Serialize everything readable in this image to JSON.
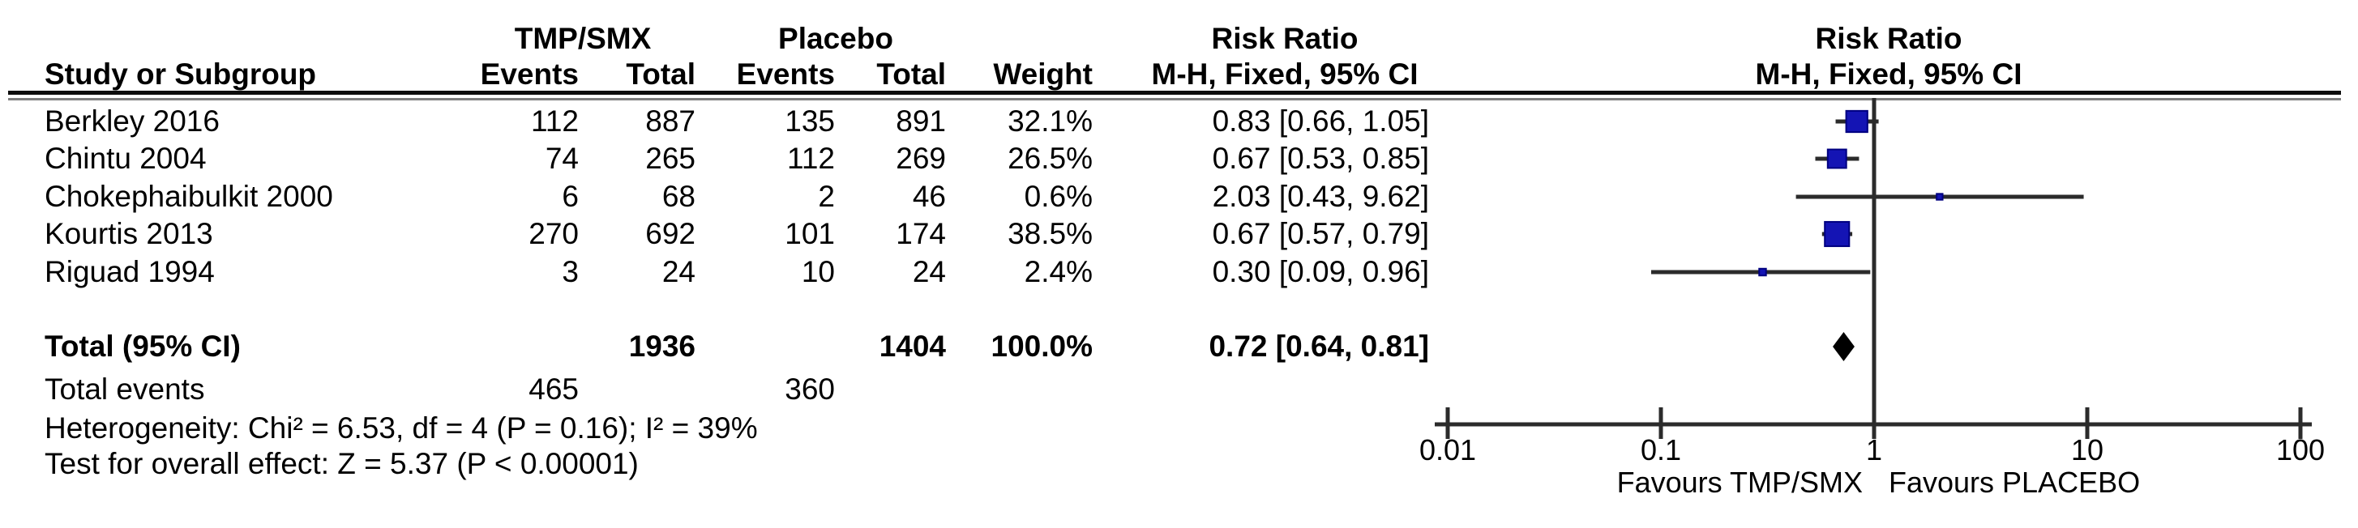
{
  "chart_data": {
    "type": "forest_plot",
    "scale": "log10",
    "axis": {
      "xlim": [
        0.01,
        100
      ],
      "null_line": 1,
      "ticks": [
        0.01,
        0.1,
        1,
        10,
        100
      ],
      "tick_labels": [
        "0.01",
        "0.1",
        "1",
        "10",
        "100"
      ]
    },
    "headers": {
      "study": "Study or Subgroup",
      "group1": "TMP/SMX",
      "group2": "Placebo",
      "events1": "Events",
      "total1": "Total",
      "events2": "Events",
      "total2": "Total",
      "weight": "Weight",
      "effect_col_line1": "Risk Ratio",
      "effect_col_line2": "M-H, Fixed, 95% CI",
      "plot_col_line1": "Risk Ratio",
      "plot_col_line2": "M-H, Fixed, 95% CI"
    },
    "studies": [
      {
        "name": "Berkley 2016",
        "events1": "112",
        "total1": "887",
        "events2": "135",
        "total2": "891",
        "weight": "32.1%",
        "weight_pct": 32.1,
        "rr": 0.83,
        "ci_low": 0.66,
        "ci_high": 1.05,
        "estimate_text": "0.83 [0.66, 1.05]"
      },
      {
        "name": "Chintu 2004",
        "events1": "74",
        "total1": "265",
        "events2": "112",
        "total2": "269",
        "weight": "26.5%",
        "weight_pct": 26.5,
        "rr": 0.67,
        "ci_low": 0.53,
        "ci_high": 0.85,
        "estimate_text": "0.67 [0.53, 0.85]"
      },
      {
        "name": "Chokephaibulkit 2000",
        "events1": "6",
        "total1": "68",
        "events2": "2",
        "total2": "46",
        "weight": "0.6%",
        "weight_pct": 0.6,
        "rr": 2.03,
        "ci_low": 0.43,
        "ci_high": 9.62,
        "estimate_text": "2.03 [0.43, 9.62]"
      },
      {
        "name": "Kourtis 2013",
        "events1": "270",
        "total1": "692",
        "events2": "101",
        "total2": "174",
        "weight": "38.5%",
        "weight_pct": 38.5,
        "rr": 0.67,
        "ci_low": 0.57,
        "ci_high": 0.79,
        "estimate_text": "0.67 [0.57, 0.79]"
      },
      {
        "name": "Riguad 1994",
        "events1": "3",
        "total1": "24",
        "events2": "10",
        "total2": "24",
        "weight": "2.4%",
        "weight_pct": 2.4,
        "rr": 0.3,
        "ci_low": 0.09,
        "ci_high": 0.96,
        "estimate_text": "0.30 [0.09, 0.96]"
      }
    ],
    "total": {
      "label": "Total (95% CI)",
      "total1": "1936",
      "total2": "1404",
      "weight": "100.0%",
      "rr": 0.72,
      "ci_low": 0.64,
      "ci_high": 0.81,
      "estimate_text": "0.72 [0.64, 0.81]"
    },
    "total_events": {
      "label": "Total events",
      "events1": "465",
      "events2": "360"
    },
    "heterogeneity": "Heterogeneity: Chi² = 6.53, df = 4 (P = 0.16); I² = 39%",
    "overall_effect": "Test for overall effect: Z = 5.37 (P < 0.00001)",
    "favours_left": "Favours TMP/SMX",
    "favours_right": "Favours PLACEBO",
    "colors": {
      "marker_fill": "#1414b4",
      "marker_border": "#000080",
      "line": "#2b2b2b",
      "diamond": "#000000",
      "text": "#000000"
    }
  }
}
